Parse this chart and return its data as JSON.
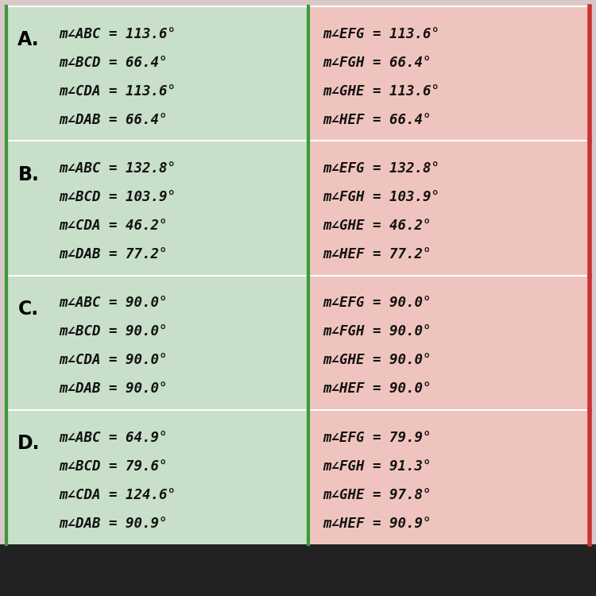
{
  "rows": [
    {
      "label": "A.",
      "left_lines": [
        "m∠ABC = 113.6°",
        "m∠BCD = 66.4°",
        "m∠CDA = 113.6°",
        "m∠DAB = 66.4°"
      ],
      "right_lines": [
        "m∠EFG = 113.6°",
        "m∠FGH = 66.4°",
        "m∠GHE = 113.6°",
        "m∠HEF = 66.4°"
      ]
    },
    {
      "label": "B.",
      "left_lines": [
        "m∠ABC = 132.8°",
        "m∠BCD = 103.9°",
        "m∠CDA = 46.2°",
        "m∠DAB = 77.2°"
      ],
      "right_lines": [
        "m∠EFG = 132.8°",
        "m∠FGH = 103.9°",
        "m∠GHE = 46.2°",
        "m∠HEF = 77.2°"
      ]
    },
    {
      "label": "C.",
      "left_lines": [
        "m∠ABC = 90.0°",
        "m∠BCD = 90.0°",
        "m∠CDA = 90.0°",
        "m∠DAB = 90.0°"
      ],
      "right_lines": [
        "m∠EFG = 90.0°",
        "m∠FGH = 90.0°",
        "m∠GHE = 90.0°",
        "m∠HEF = 90.0°"
      ]
    },
    {
      "label": "D.",
      "left_lines": [
        "m∠ABC = 64.9°",
        "m∠BCD = 79.6°",
        "m∠CDA = 124.6°",
        "m∠DAB = 90.9°"
      ],
      "right_lines": [
        "m∠EFG = 79.9°",
        "m∠FGH = 91.3°",
        "m∠GHE = 97.8°",
        "m∠HEF = 90.9°"
      ]
    }
  ],
  "left_bg": "#c8dfc9",
  "right_bg": "#f0c4be",
  "outer_bg": "#d8c8c8",
  "divider_color": "#3a9a3a",
  "right_border_color": "#cc3333",
  "label_color": "#000000",
  "text_color": "#111111",
  "bottom_bar_color": "#222222",
  "font_size": 12.5,
  "label_font_size": 17,
  "fig_width": 7.5,
  "fig_height": 7.5
}
